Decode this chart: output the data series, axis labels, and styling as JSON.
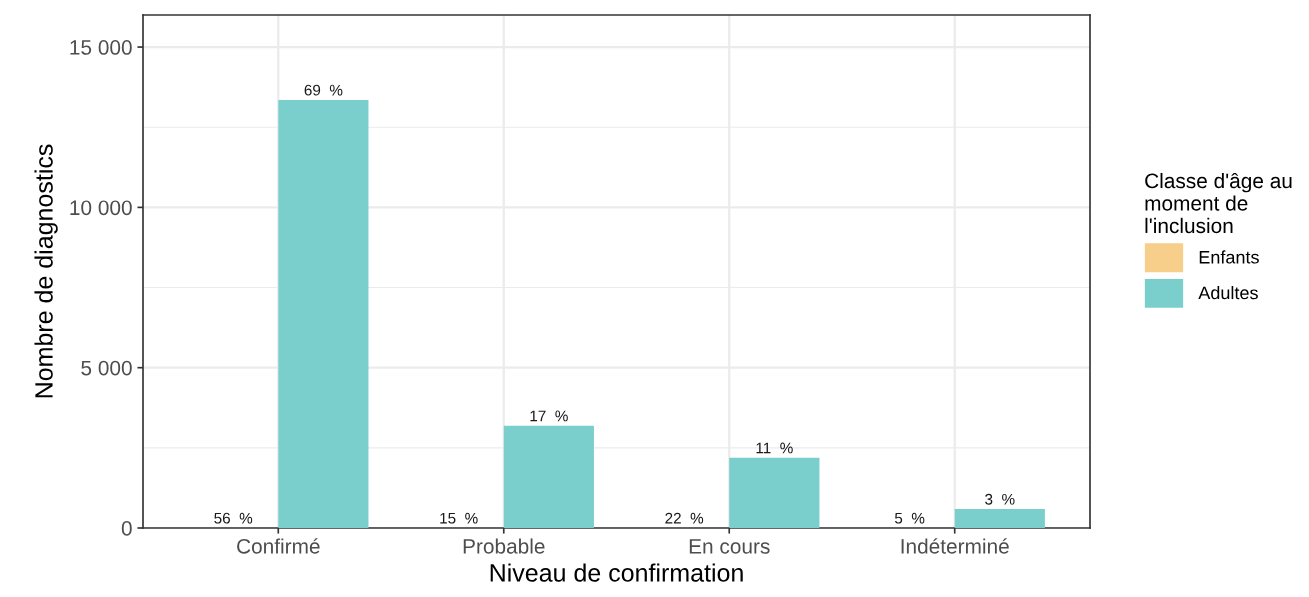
{
  "chart_data": {
    "type": "bar",
    "xlabel": "Niveau de confirmation",
    "ylabel": "Nombre de diagnostics",
    "legend_title": "Classe d'âge au\nmoment de\nl'inclusion",
    "categories": [
      "Confirmé",
      "Probable",
      "En cours",
      "Indéterminé"
    ],
    "series": [
      {
        "name": "Enfants",
        "color": "#f8cf8a",
        "values": [
          0,
          0,
          0,
          0
        ]
      },
      {
        "name": "Adultes",
        "color": "#7acfcd",
        "values": [
          13350,
          3190,
          2190,
          590
        ]
      }
    ],
    "annotations": [
      {
        "text": "56  %",
        "x": "Confirmé",
        "y": 0
      },
      {
        "text": "15  %",
        "x": "Probable",
        "y": 0
      },
      {
        "text": "22  %",
        "x": "En cours",
        "y": 0
      },
      {
        "text": "5  %",
        "x": "Indéterminé",
        "y": 0
      },
      {
        "text": "69  %",
        "x": "Confirmé",
        "y": 13350
      },
      {
        "text": "17  %",
        "x": "Probable",
        "y": 3190
      },
      {
        "text": "11  %",
        "x": "En cours",
        "y": 2190
      },
      {
        "text": "3  %",
        "x": "Indéterminé",
        "y": 590
      }
    ],
    "ylim": [
      0,
      16000
    ],
    "yticks": [
      {
        "value": 0,
        "label": "0"
      },
      {
        "value": 5000,
        "label": "5 000"
      },
      {
        "value": 10000,
        "label": "10 000"
      },
      {
        "value": 15000,
        "label": "15 000"
      }
    ],
    "grid": true,
    "legend": "right"
  }
}
